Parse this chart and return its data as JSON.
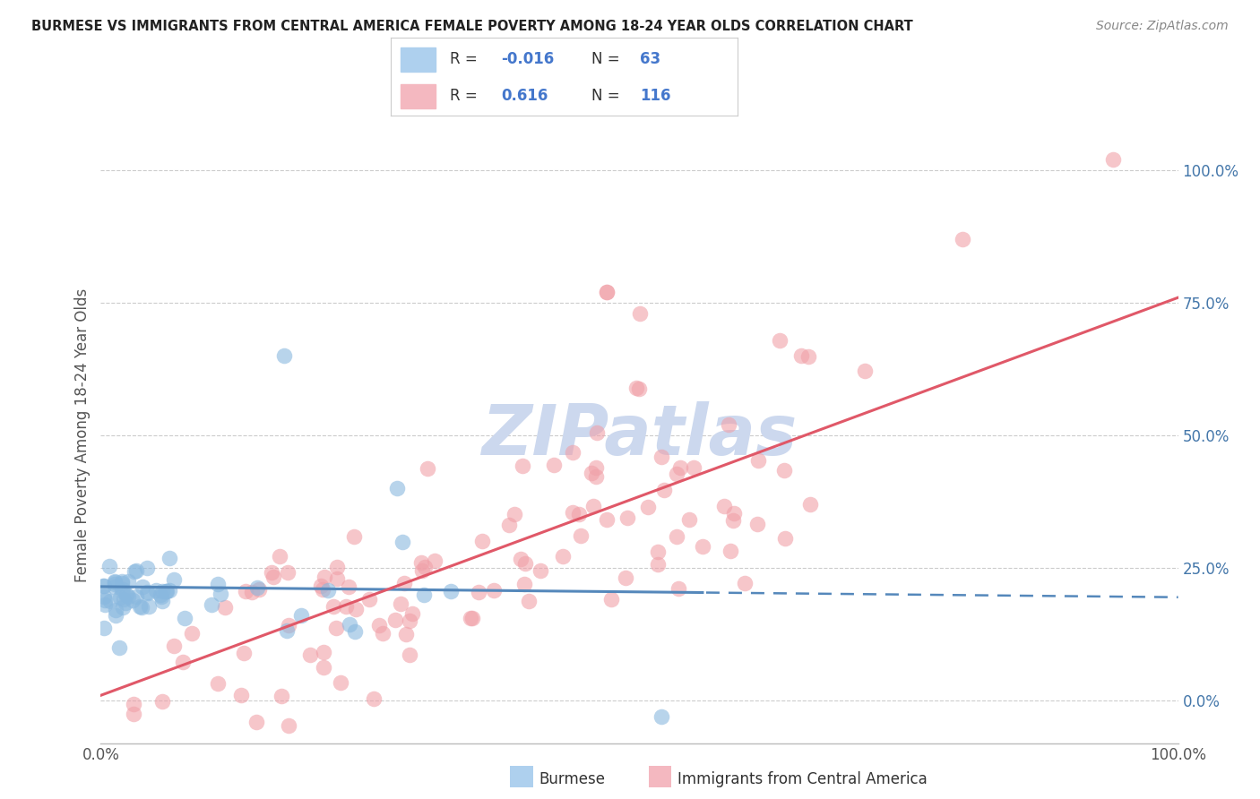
{
  "title": "BURMESE VS IMMIGRANTS FROM CENTRAL AMERICA FEMALE POVERTY AMONG 18-24 YEAR OLDS CORRELATION CHART",
  "source": "Source: ZipAtlas.com",
  "ylabel": "Female Poverty Among 18-24 Year Olds",
  "xlim": [
    0.0,
    1.0
  ],
  "ylim": [
    -0.08,
    1.08
  ],
  "yticks": [
    0.0,
    0.25,
    0.5,
    0.75,
    1.0
  ],
  "ytick_labels": [
    "0.0%",
    "25.0%",
    "50.0%",
    "75.0%",
    "100.0%"
  ],
  "xtick_labels": [
    "0.0%",
    "100.0%"
  ],
  "background_color": "#ffffff",
  "grid_color": "#cccccc",
  "title_color": "#222222",
  "axis_label_color": "#555555",
  "burmese_scatter_color": "#89b8df",
  "central_america_scatter_color": "#f0a0a8",
  "burmese_line_color": "#5588bb",
  "central_america_line_color": "#e05868",
  "burmese_line_style": "solid",
  "burmese_line_dashed_style": "dashed",
  "burmese_R": -0.016,
  "burmese_N": 63,
  "central_R": 0.616,
  "central_N": 116,
  "legend_label_burmese": "Burmese",
  "legend_label_central": "Immigrants from Central America",
  "legend_R_burmese": "-0.016",
  "legend_N_burmese": "63",
  "legend_R_central": "0.616",
  "legend_N_central": "116",
  "legend_color_burmese": "#aed0ee",
  "legend_color_central": "#f4b8c0",
  "legend_text_color": "#333333",
  "legend_value_color": "#4477cc",
  "tick_label_color": "#4477aa",
  "watermark_color": "#ccd8ee",
  "seed": 7
}
